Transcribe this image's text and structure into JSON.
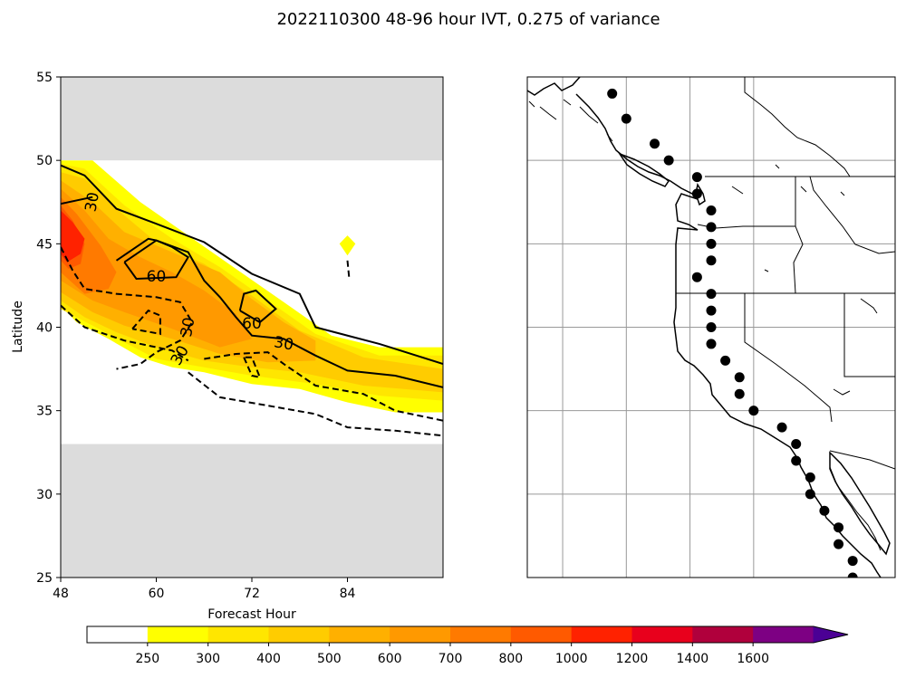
{
  "figure": {
    "title": "2022110300 48-96 hour IVT, 0.275 of variance"
  },
  "chart_data": [
    {
      "type": "heatmap",
      "panel": "hovmoller",
      "xlabel": "Forecast Hour",
      "ylabel": "Latitude",
      "xlim": [
        48,
        96
      ],
      "ylim": [
        25,
        55
      ],
      "xticks": [
        48,
        60,
        72,
        84
      ],
      "yticks": [
        25,
        30,
        35,
        40,
        45,
        50,
        55
      ],
      "masked_lat_ranges": [
        [
          50,
          55
        ],
        [
          25,
          33
        ]
      ],
      "fill_levels": [
        250,
        300,
        400,
        500,
        600,
        700,
        800,
        1000,
        1200,
        1400,
        1600
      ],
      "fill_colors": [
        "#ffff00",
        "#ffe600",
        "#ffcc00",
        "#ffb000",
        "#ff9900",
        "#ff7a00",
        "#ff5a00",
        "#ff2200",
        "#e8001c",
        "#b0003c",
        "#7d0083",
        "#4b0095"
      ],
      "filled_regions": [
        {
          "level": 250,
          "points": [
            [
              48,
              50
            ],
            [
              52,
              50
            ],
            [
              58,
              47.5
            ],
            [
              64,
              45.5
            ],
            [
              70,
              43.5
            ],
            [
              76,
              41.5
            ],
            [
              82,
              39.5
            ],
            [
              88,
              38.8
            ],
            [
              96,
              38.8
            ],
            [
              96,
              34.9
            ],
            [
              90,
              34.9
            ],
            [
              84,
              35.5
            ],
            [
              78,
              36.3
            ],
            [
              72,
              36.6
            ],
            [
              66,
              37.3
            ],
            [
              62,
              37.6
            ],
            [
              58,
              38.2
            ],
            [
              54,
              39.3
            ],
            [
              50,
              40.3
            ],
            [
              48,
              41.3
            ]
          ]
        },
        {
          "level": 300,
          "points": [
            [
              48,
              49.8
            ],
            [
              51,
              49.5
            ],
            [
              56,
              47.3
            ],
            [
              62,
              45.3
            ],
            [
              68,
              43.6
            ],
            [
              74,
              41.6
            ],
            [
              80,
              39.6
            ],
            [
              88,
              38.3
            ],
            [
              96,
              38.3
            ],
            [
              96,
              35.6
            ],
            [
              88,
              35.9
            ],
            [
              80,
              36.6
            ],
            [
              72,
              37.1
            ],
            [
              66,
              37.6
            ],
            [
              60,
              38.1
            ],
            [
              56,
              39.1
            ],
            [
              52,
              40.1
            ],
            [
              48,
              41.1
            ]
          ]
        },
        {
          "level": 400,
          "points": [
            [
              48,
              49.3
            ],
            [
              51,
              48.9
            ],
            [
              55,
              47.1
            ],
            [
              60,
              45.1
            ],
            [
              66,
              43.8
            ],
            [
              72,
              41.9
            ],
            [
              78,
              39.8
            ],
            [
              86,
              38.2
            ],
            [
              96,
              37.5
            ],
            [
              96,
              36.1
            ],
            [
              86,
              36.5
            ],
            [
              78,
              37.3
            ],
            [
              72,
              37.6
            ],
            [
              66,
              38.0
            ],
            [
              60,
              38.8
            ],
            [
              55,
              39.7
            ],
            [
              51,
              40.6
            ],
            [
              48,
              41.6
            ]
          ]
        },
        {
          "level": 500,
          "points": [
            [
              48,
              48.8
            ],
            [
              52,
              47.5
            ],
            [
              56,
              45.7
            ],
            [
              62,
              44.5
            ],
            [
              68,
              43.3
            ],
            [
              72,
              41.7
            ],
            [
              76,
              40.3
            ],
            [
              80,
              39.2
            ],
            [
              80,
              38.0
            ],
            [
              74,
              37.9
            ],
            [
              68,
              38.4
            ],
            [
              62,
              39.3
            ],
            [
              56,
              40.1
            ],
            [
              52,
              40.9
            ],
            [
              48,
              42.1
            ]
          ]
        },
        {
          "level": 600,
          "points": [
            [
              48,
              48.3
            ],
            [
              51,
              47.0
            ],
            [
              54,
              45.3
            ],
            [
              58,
              44.2
            ],
            [
              62,
              43.3
            ],
            [
              66,
              42.2
            ],
            [
              70,
              40.8
            ],
            [
              72,
              39.3
            ],
            [
              68,
              38.8
            ],
            [
              62,
              39.9
            ],
            [
              56,
              40.9
            ],
            [
              52,
              41.6
            ],
            [
              48,
              42.8
            ]
          ]
        },
        {
          "level": 700,
          "points": [
            [
              48,
              47.8
            ],
            [
              50,
              46.8
            ],
            [
              53,
              44.9
            ],
            [
              55,
              43.3
            ],
            [
              54,
              42.3
            ],
            [
              51,
              42.0
            ],
            [
              48,
              43.3
            ]
          ]
        },
        {
          "level": 800,
          "points": [
            [
              48,
              47.3
            ],
            [
              49.5,
              46.4
            ],
            [
              51,
              45.0
            ],
            [
              50.5,
              43.8
            ],
            [
              49,
              43.5
            ],
            [
              48,
              44.0
            ]
          ]
        },
        {
          "level": 1000,
          "points": [
            [
              48,
              47.0
            ],
            [
              49.5,
              46.3
            ],
            [
              51,
              45.3
            ],
            [
              50.5,
              44.4
            ],
            [
              48.8,
              43.9
            ],
            [
              48,
              44.4
            ]
          ]
        },
        {
          "level": 250,
          "points": [
            [
              83,
              45.0
            ],
            [
              84,
              45.5
            ],
            [
              85,
              45.0
            ],
            [
              84,
              44.3
            ]
          ]
        }
      ],
      "contours": [
        {
          "level": 30,
          "style": "solid",
          "points": [
            [
              48,
              49.7
            ],
            [
              51,
              49.1
            ],
            [
              55,
              47.1
            ],
            [
              60,
              46.2
            ],
            [
              66,
              45.1
            ],
            [
              72,
              43.2
            ],
            [
              78,
              42.0
            ],
            [
              80,
              40.0
            ],
            [
              88,
              39.0
            ],
            [
              96,
              37.8
            ]
          ]
        },
        {
          "level": 30,
          "style": "solid",
          "points": [
            [
              48,
              47.4
            ],
            [
              52,
              47.8
            ]
          ]
        },
        {
          "level": 30,
          "style": "solid",
          "points": [
            [
              55,
              44.0
            ],
            [
              59,
              45.3
            ],
            [
              60,
              45.2
            ],
            [
              64,
              44.5
            ],
            [
              66,
              42.8
            ],
            [
              68,
              41.8
            ],
            [
              70,
              40.6
            ],
            [
              72,
              39.5
            ],
            [
              76,
              39.3
            ],
            [
              80,
              38.3
            ],
            [
              84,
              37.4
            ],
            [
              90,
              37.1
            ],
            [
              96,
              36.4
            ]
          ]
        },
        {
          "level": 60,
          "style": "solid",
          "points": [
            [
              56,
              43.9
            ],
            [
              60,
              45.2
            ],
            [
              62,
              44.8
            ],
            [
              64,
              44.2
            ],
            [
              62.5,
              43.0
            ],
            [
              57.5,
              42.9
            ],
            [
              56,
              43.9
            ]
          ]
        },
        {
          "level": 60,
          "style": "solid",
          "points": [
            [
              70.5,
              41.0
            ],
            [
              71,
              42.0
            ],
            [
              72.5,
              42.2
            ],
            [
              75,
              41.1
            ],
            [
              73,
              40.3
            ],
            [
              70.5,
              41.0
            ]
          ]
        },
        {
          "level": 30,
          "style": "dashed",
          "points": [
            [
              48,
              44.8
            ],
            [
              49.5,
              43.4
            ],
            [
              51,
              42.3
            ],
            [
              55,
              42.0
            ],
            [
              60,
              41.8
            ],
            [
              63,
              41.5
            ],
            [
              64.5,
              40.3
            ],
            [
              63,
              39.2
            ],
            [
              60,
              38.5
            ],
            [
              58,
              37.8
            ],
            [
              55,
              37.5
            ]
          ]
        },
        {
          "level": 30,
          "style": "dashed",
          "points": [
            [
              57,
              39.9
            ],
            [
              59,
              41.0
            ],
            [
              60.5,
              40.7
            ],
            [
              60.5,
              39.6
            ],
            [
              57,
              39.9
            ]
          ]
        },
        {
          "level": 30,
          "style": "dashed",
          "points": [
            [
              66,
              38.1
            ],
            [
              70,
              38.4
            ],
            [
              74,
              38.5
            ],
            [
              76,
              37.8
            ],
            [
              80,
              36.5
            ],
            [
              86,
              36.0
            ],
            [
              90,
              35.0
            ],
            [
              96,
              34.4
            ]
          ]
        },
        {
          "level": 30,
          "style": "dashed",
          "points": [
            [
              71,
              38.2
            ],
            [
              72,
              37.1
            ],
            [
              73,
              37.0
            ],
            [
              72,
              38.2
            ],
            [
              71,
              38.2
            ]
          ]
        },
        {
          "level": 30,
          "style": "dashed",
          "points": [
            [
              48,
              41.3
            ],
            [
              51,
              40.0
            ],
            [
              56,
              39.2
            ],
            [
              60,
              38.8
            ],
            [
              62,
              38.6
            ],
            [
              64,
              38.0
            ]
          ]
        },
        {
          "level": 30,
          "style": "dashed",
          "points": [
            [
              64,
              37.3
            ],
            [
              68,
              35.8
            ],
            [
              74,
              35.3
            ],
            [
              80,
              34.8
            ],
            [
              84,
              34.0
            ],
            [
              90,
              33.8
            ],
            [
              96,
              33.5
            ]
          ]
        },
        {
          "level": 30,
          "style": "dashed",
          "points": [
            [
              84,
              44.0
            ],
            [
              84.2,
              43.0
            ]
          ]
        }
      ],
      "contour_labels": [
        {
          "text": "30",
          "x": 52,
          "y": 47.5,
          "rotation": -80
        },
        {
          "text": "60",
          "x": 60,
          "y": 43.0,
          "rotation": 0
        },
        {
          "text": "30",
          "x": 64,
          "y": 40.0,
          "rotation": -80
        },
        {
          "text": "60",
          "x": 72,
          "y": 40.2,
          "rotation": 0
        },
        {
          "text": "30",
          "x": 76,
          "y": 39.0,
          "rotation": 10
        },
        {
          "text": "30",
          "x": 63,
          "y": 38.3,
          "rotation": -60
        }
      ]
    },
    {
      "type": "scatter",
      "panel": "map",
      "lon_range": [
        -136,
        -110
      ],
      "lat_range": [
        25,
        55
      ],
      "gridline_lons": [
        -133.5,
        -129,
        -124.5,
        -120
      ],
      "gridline_lats": [
        30,
        35,
        40,
        45,
        50
      ],
      "points": [
        [
          -130,
          54.0
        ],
        [
          -129,
          52.5
        ],
        [
          -127,
          51
        ],
        [
          -126,
          50
        ],
        [
          -124,
          49
        ],
        [
          -124,
          48
        ],
        [
          -123,
          47
        ],
        [
          -123,
          46
        ],
        [
          -123,
          45
        ],
        [
          -123,
          44
        ],
        [
          -124,
          43
        ],
        [
          -123,
          42
        ],
        [
          -123,
          41
        ],
        [
          -123,
          40
        ],
        [
          -123,
          39
        ],
        [
          -122,
          38
        ],
        [
          -121,
          37
        ],
        [
          -121,
          36
        ],
        [
          -120,
          35
        ],
        [
          -118,
          34
        ],
        [
          -117,
          33
        ],
        [
          -117,
          32
        ],
        [
          -116,
          31
        ],
        [
          -116,
          30
        ],
        [
          -115,
          29
        ],
        [
          -114,
          28
        ],
        [
          -114,
          27
        ],
        [
          -113,
          26
        ],
        [
          -113,
          25
        ]
      ]
    }
  ],
  "colorbar": {
    "tick_labels": [
      "250",
      "300",
      "400",
      "500",
      "600",
      "700",
      "800",
      "1000",
      "1200",
      "1400",
      "1600"
    ],
    "segment_colors": [
      "#ffffff",
      "#ffff00",
      "#ffe600",
      "#ffcc00",
      "#ffb000",
      "#ff9900",
      "#ff7a00",
      "#ff5a00",
      "#ff2200",
      "#e8001c",
      "#b0003c",
      "#7d0083",
      "#4b0095"
    ],
    "extend": "max"
  }
}
